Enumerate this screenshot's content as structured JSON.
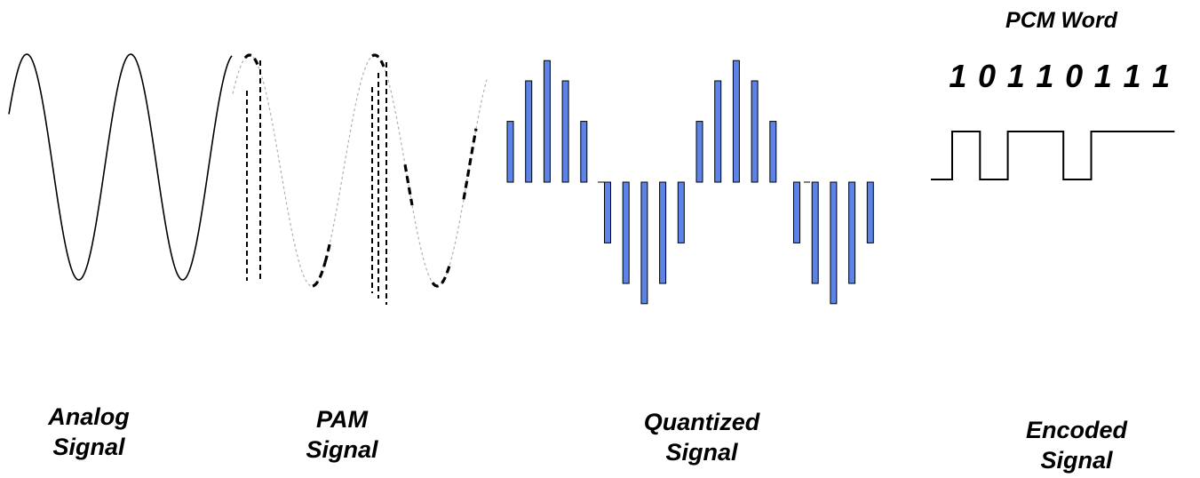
{
  "labels": {
    "analog": [
      "Analog",
      "Signal"
    ],
    "pam": [
      "PAM",
      "Signal"
    ],
    "quantized": [
      "Quantized",
      "Signal"
    ],
    "encoded": [
      "Encoded",
      "Signal"
    ]
  },
  "pcm": {
    "title": "PCM Word",
    "bits": [
      "1",
      "0",
      "1",
      "1",
      "0",
      "1",
      "1",
      "1"
    ]
  },
  "colors": {
    "bar_fill": "#5b83e8",
    "stroke": "#000000",
    "pam_guide": "#b0b0b0"
  },
  "quantized_levels": [
    3,
    5,
    6,
    5,
    3,
    -3,
    -5,
    -6,
    -5,
    -3,
    3,
    5,
    6,
    5,
    3,
    -3,
    -5,
    -6,
    -5,
    -3
  ]
}
